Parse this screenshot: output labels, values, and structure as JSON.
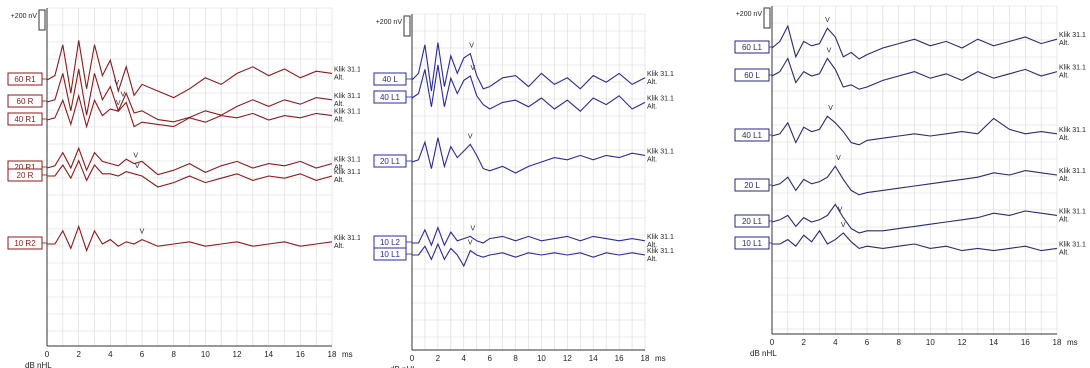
{
  "chart_data": [
    {
      "type": "line",
      "color": "#8b1a1a",
      "scale_label": "+200 nV",
      "x_unit": "ms",
      "y_unit_label": "dB nHL",
      "xlim": [
        0,
        18
      ],
      "xticks": [
        "0",
        "2",
        "4",
        "6",
        "8",
        "10",
        "12",
        "14",
        "16",
        "18"
      ],
      "grid": true,
      "traces": [
        {
          "name": "60 R1",
          "level": 60,
          "peak_v_ms": 4.4,
          "tag": "Klik 31.1",
          "tag2": "Alt.",
          "x": [
            0,
            0.5,
            1,
            1.5,
            2,
            2.5,
            3,
            3.5,
            4,
            4.5,
            5,
            5.5,
            6,
            7,
            8,
            9,
            10,
            11,
            12,
            13,
            14,
            15,
            16,
            17,
            18
          ],
          "y": [
            0,
            0.2,
            1.6,
            -0.6,
            1.8,
            -0.4,
            1.6,
            0.2,
            0.9,
            -0.5,
            0.6,
            -0.7,
            -0.2,
            -0.5,
            -0.8,
            -0.4,
            0.1,
            -0.2,
            0.3,
            0.6,
            0.2,
            0.5,
            0.1,
            0.4,
            0.3
          ]
        },
        {
          "name": "60 R",
          "level": 60,
          "peak_v_ms": 4.5,
          "tag": "Klik 31.1",
          "tag2": "Alt.",
          "x": [
            0,
            0.5,
            1,
            1.5,
            2,
            2.5,
            3,
            3.5,
            4,
            4.5,
            5,
            5.5,
            6,
            7,
            8,
            9,
            10,
            11,
            12,
            13,
            14,
            15,
            16,
            17,
            18
          ],
          "y": [
            0,
            0.1,
            1.3,
            -0.4,
            1.5,
            -0.6,
            1.3,
            0.1,
            0.7,
            -0.4,
            0.4,
            -0.5,
            -0.4,
            -0.8,
            -0.9,
            -0.7,
            -0.4,
            -0.6,
            -0.2,
            0.1,
            -0.2,
            0.1,
            -0.1,
            0.2,
            0.1
          ]
        },
        {
          "name": "40 R1",
          "level": 40,
          "peak_v_ms": 4.8,
          "tag": "Klik 31.1",
          "tag2": "Alt.",
          "x": [
            0,
            0.5,
            1,
            1.5,
            2,
            2.5,
            3,
            3.5,
            4,
            4.5,
            5,
            5.5,
            6,
            7,
            8,
            9,
            10,
            11,
            12,
            13,
            14,
            15,
            16,
            17,
            18
          ],
          "y": [
            0,
            0.1,
            0.9,
            -0.2,
            1.1,
            -0.3,
            0.9,
            0.2,
            0.5,
            0.4,
            0.8,
            -0.3,
            -0.1,
            -0.2,
            -0.3,
            0.1,
            -0.1,
            0.2,
            0.1,
            0.3,
            0.0,
            0.2,
            0.1,
            0.3,
            0.2
          ]
        },
        {
          "name": "20 R1",
          "level": 20,
          "peak_v_ms": 5.6,
          "tag": "Klik 31.1",
          "tag2": "Alt.",
          "x": [
            0,
            0.5,
            1,
            1.5,
            2,
            2.5,
            3,
            3.5,
            4,
            4.5,
            5,
            5.5,
            6,
            7,
            8,
            9,
            10,
            11,
            12,
            13,
            14,
            15,
            16,
            17,
            18
          ],
          "y": [
            0,
            0.1,
            0.7,
            0.0,
            0.9,
            -0.1,
            0.7,
            0.3,
            0.2,
            0.1,
            0.4,
            0.2,
            0.3,
            -0.3,
            -0.1,
            0.2,
            -0.2,
            0.1,
            0.3,
            0.0,
            0.2,
            0.1,
            0.3,
            0.0,
            0.2
          ]
        },
        {
          "name": "20 R",
          "level": 20,
          "peak_v_ms": 5.7,
          "tag": "Klik 31.1",
          "tag2": "Alt.",
          "x": [
            0,
            0.5,
            1,
            1.5,
            2,
            2.5,
            3,
            3.5,
            4,
            4.5,
            5,
            5.5,
            6,
            7,
            8,
            9,
            10,
            11,
            12,
            13,
            14,
            15,
            16,
            17,
            18
          ],
          "y": [
            0,
            0.0,
            0.5,
            -0.1,
            0.7,
            -0.2,
            0.5,
            0.1,
            0.1,
            0.0,
            0.2,
            0.1,
            0.0,
            -0.5,
            -0.3,
            0.0,
            -0.3,
            -0.1,
            0.1,
            -0.2,
            0.0,
            -0.1,
            0.1,
            -0.2,
            0.0
          ]
        },
        {
          "name": "10 R2",
          "level": 10,
          "peak_v_ms": 6.0,
          "tag": "Klik 31.1",
          "tag2": "Alt.",
          "x": [
            0,
            0.5,
            1,
            1.5,
            2,
            2.5,
            3,
            3.5,
            4,
            4.5,
            5,
            5.5,
            6,
            7,
            8,
            9,
            10,
            11,
            12,
            13,
            14,
            15,
            16,
            17,
            18
          ],
          "y": [
            0,
            0.0,
            0.6,
            -0.2,
            0.8,
            -0.3,
            0.6,
            0.0,
            0.2,
            -0.1,
            0.1,
            0.0,
            0.2,
            -0.1,
            0.0,
            0.1,
            -0.1,
            0.0,
            0.1,
            -0.1,
            0.0,
            0.1,
            -0.1,
            0.0,
            0.1
          ]
        }
      ]
    },
    {
      "type": "line",
      "color": "#2a2a9c",
      "scale_label": "+200 nV",
      "x_unit": "ms",
      "y_unit_label": "dB nHL",
      "xlim": [
        0,
        18
      ],
      "xticks": [
        "0",
        "2",
        "4",
        "6",
        "8",
        "10",
        "12",
        "14",
        "16",
        "18"
      ],
      "grid": true,
      "traces": [
        {
          "name": "40 L",
          "level": 40,
          "peak_v_ms": 4.6,
          "tag": "Klik 31.1",
          "tag2": "Alt.",
          "x": [
            0,
            0.5,
            1,
            1.5,
            2,
            2.5,
            3,
            3.5,
            4,
            4.5,
            5,
            5.5,
            6,
            7,
            8,
            9,
            10,
            11,
            12,
            13,
            14,
            15,
            16,
            17,
            18
          ],
          "y": [
            0,
            0.3,
            1.6,
            -0.5,
            1.7,
            -0.3,
            1.1,
            0.3,
            1.0,
            1.2,
            0.2,
            -0.4,
            -0.3,
            0.1,
            0.2,
            -0.3,
            0.3,
            -0.2,
            0.1,
            -0.4,
            0.2,
            -0.1,
            0.3,
            -0.2,
            0.1
          ]
        },
        {
          "name": "40 L1",
          "level": 40,
          "peak_v_ms": 4.7,
          "tag": "Klik 31.1",
          "tag2": "Alt.",
          "x": [
            0,
            0.5,
            1,
            1.5,
            2,
            2.5,
            3,
            3.5,
            4,
            4.5,
            5,
            5.5,
            6,
            7,
            8,
            9,
            10,
            11,
            12,
            13,
            14,
            15,
            16,
            17,
            18
          ],
          "y": [
            0,
            0.2,
            1.3,
            -0.4,
            1.5,
            -0.4,
            0.9,
            0.2,
            0.8,
            1.0,
            0.1,
            -0.3,
            -0.5,
            -0.2,
            -0.1,
            -0.4,
            0.0,
            -0.5,
            -0.1,
            -0.6,
            0.0,
            -0.3,
            0.1,
            -0.5,
            -0.2
          ]
        },
        {
          "name": "20 L1",
          "level": 20,
          "peak_v_ms": 4.5,
          "tag": "Klik 31.1",
          "tag2": "Alt.",
          "x": [
            0,
            0.5,
            1,
            1.5,
            2,
            2.5,
            3,
            3.5,
            4,
            4.5,
            5,
            5.5,
            6,
            7,
            8,
            9,
            10,
            11,
            12,
            13,
            14,
            15,
            16,
            17,
            18
          ],
          "y": [
            0,
            0.1,
            0.9,
            -0.3,
            1.1,
            -0.2,
            0.7,
            0.2,
            0.5,
            0.8,
            0.3,
            -0.3,
            -0.4,
            -0.2,
            -0.5,
            -0.2,
            0.0,
            0.2,
            0.1,
            0.3,
            0.1,
            0.3,
            0.2,
            0.4,
            0.3
          ]
        },
        {
          "name": "10 L2",
          "level": 10,
          "peak_v_ms": 4.7,
          "tag": "Klik 31.1",
          "tag2": "Alt.",
          "x": [
            0,
            0.5,
            1,
            1.5,
            2,
            2.5,
            3,
            3.5,
            4,
            4.5,
            5,
            5.5,
            6,
            7,
            8,
            9,
            10,
            11,
            12,
            13,
            14,
            15,
            16,
            17,
            18
          ],
          "y": [
            0,
            0.0,
            0.6,
            -0.1,
            0.7,
            -0.1,
            0.5,
            0.1,
            0.2,
            0.3,
            0.1,
            0.0,
            0.2,
            0.3,
            0.1,
            0.3,
            0.1,
            0.2,
            0.3,
            0.1,
            0.3,
            0.2,
            0.1,
            0.2,
            0.1
          ]
        },
        {
          "name": "10 L1",
          "level": 10,
          "peak_v_ms": 4.5,
          "tag": "Klik 31.1",
          "tag2": "Alt.",
          "x": [
            0,
            0.5,
            1,
            1.5,
            2,
            2.5,
            3,
            3.5,
            4,
            4.5,
            5,
            5.5,
            6,
            7,
            8,
            9,
            10,
            11,
            12,
            13,
            14,
            15,
            16,
            17,
            18
          ],
          "y": [
            0,
            0.0,
            0.4,
            -0.2,
            0.5,
            -0.2,
            0.3,
            0.0,
            -0.5,
            0.2,
            0.0,
            -0.1,
            0.0,
            0.1,
            -0.1,
            0.1,
            0.0,
            0.1,
            0.0,
            0.1,
            -0.1,
            0.1,
            0.0,
            0.1,
            0.0
          ]
        }
      ]
    },
    {
      "type": "line",
      "color": "#2a2a70",
      "scale_label": "+200 nV",
      "x_unit": "ms",
      "y_unit_label": "dB nHL",
      "xlim": [
        0,
        18
      ],
      "xticks": [
        "0",
        "2",
        "4",
        "6",
        "8",
        "10",
        "12",
        "14",
        "16",
        "18"
      ],
      "grid": true,
      "traces": [
        {
          "name": "60 L1",
          "level": 60,
          "peak_v_ms": 3.5,
          "tag": "Klik 31.1",
          "tag2": "Alt.",
          "x": [
            0,
            0.5,
            1,
            1.5,
            2,
            2.5,
            3,
            3.5,
            4,
            4.5,
            5,
            5.5,
            6,
            7,
            8,
            9,
            10,
            11,
            12,
            13,
            14,
            15,
            16,
            17,
            18
          ],
          "y": [
            0,
            0.3,
            1.0,
            -0.4,
            0.3,
            0.1,
            0.2,
            0.9,
            0.5,
            -0.4,
            -0.2,
            -0.5,
            -0.3,
            0.0,
            0.2,
            0.4,
            0.1,
            0.3,
            0.0,
            0.4,
            0.1,
            0.3,
            0.5,
            0.2,
            0.4
          ]
        },
        {
          "name": "60 L",
          "level": 60,
          "peak_v_ms": 3.6,
          "tag": "Klik 31.1",
          "tag2": "Alt.",
          "x": [
            0,
            0.5,
            1,
            1.5,
            2,
            2.5,
            3,
            3.5,
            4,
            4.5,
            5,
            5.5,
            6,
            7,
            8,
            9,
            10,
            11,
            12,
            13,
            14,
            15,
            16,
            17,
            18
          ],
          "y": [
            0,
            0.2,
            0.8,
            -0.3,
            0.2,
            0.0,
            0.1,
            0.8,
            0.3,
            -0.5,
            -0.4,
            -0.6,
            -0.5,
            -0.2,
            0.0,
            0.2,
            -0.1,
            0.1,
            -0.2,
            0.2,
            -0.1,
            0.1,
            0.3,
            0.0,
            0.2
          ]
        },
        {
          "name": "40 L1",
          "level": 40,
          "peak_v_ms": 3.7,
          "tag": "Klik 31.1",
          "tag2": "Alt.",
          "x": [
            0,
            0.5,
            1,
            1.5,
            2,
            2.5,
            3,
            3.5,
            4,
            4.5,
            5,
            5.5,
            6,
            7,
            8,
            9,
            10,
            11,
            12,
            13,
            14,
            15,
            16,
            17,
            18
          ],
          "y": [
            0,
            0.1,
            0.6,
            -0.3,
            0.4,
            0.2,
            0.3,
            0.9,
            0.6,
            0.2,
            -0.3,
            -0.4,
            -0.2,
            -0.1,
            0.0,
            0.1,
            0.0,
            0.1,
            0.2,
            0.1,
            0.8,
            0.3,
            0.1,
            0.2,
            0.1
          ]
        },
        {
          "name": "20 L",
          "level": 20,
          "peak_v_ms": 4.2,
          "tag": "Klik 31.1",
          "tag2": "Alt.",
          "x": [
            0,
            0.5,
            1,
            1.5,
            2,
            2.5,
            3,
            3.5,
            4,
            4.5,
            5,
            5.5,
            6,
            7,
            8,
            9,
            10,
            11,
            12,
            13,
            14,
            15,
            16,
            17,
            18
          ],
          "y": [
            0,
            0.1,
            0.4,
            -0.2,
            0.3,
            0.1,
            0.2,
            0.4,
            0.9,
            0.3,
            -0.2,
            -0.4,
            -0.3,
            -0.2,
            -0.1,
            0.0,
            0.1,
            0.2,
            0.3,
            0.4,
            0.6,
            0.5,
            0.7,
            0.6,
            0.5
          ]
        },
        {
          "name": "20 L1",
          "level": 20,
          "peak_v_ms": 4.3,
          "tag": "Klik 31.1",
          "tag2": "Alt.",
          "x": [
            0,
            0.5,
            1,
            1.5,
            2,
            2.5,
            3,
            3.5,
            4,
            4.5,
            5,
            5.5,
            6,
            7,
            8,
            9,
            10,
            11,
            12,
            13,
            14,
            15,
            16,
            17,
            18
          ],
          "y": [
            0,
            0.1,
            0.3,
            -0.2,
            0.2,
            0.0,
            0.1,
            0.3,
            0.8,
            0.2,
            -0.3,
            -0.5,
            -0.4,
            -0.4,
            -0.3,
            -0.2,
            -0.1,
            0.0,
            0.1,
            0.2,
            0.4,
            0.3,
            0.5,
            0.4,
            0.3
          ]
        },
        {
          "name": "10 L1",
          "level": 10,
          "peak_v_ms": 4.5,
          "tag": "Klik 31.1",
          "tag2": "Alt.",
          "x": [
            0,
            0.5,
            1,
            1.5,
            2,
            2.5,
            3,
            3.5,
            4,
            4.5,
            5,
            5.5,
            6,
            7,
            8,
            9,
            10,
            11,
            12,
            13,
            14,
            15,
            16,
            17,
            18
          ],
          "y": [
            0,
            0.0,
            0.2,
            -0.1,
            0.4,
            0.1,
            0.6,
            0.0,
            0.2,
            0.5,
            0.1,
            -0.2,
            -0.1,
            -0.2,
            -0.1,
            0.0,
            -0.2,
            -0.1,
            -0.3,
            -0.2,
            -0.3,
            -0.2,
            -0.1,
            -0.3,
            -0.2
          ]
        }
      ]
    }
  ]
}
